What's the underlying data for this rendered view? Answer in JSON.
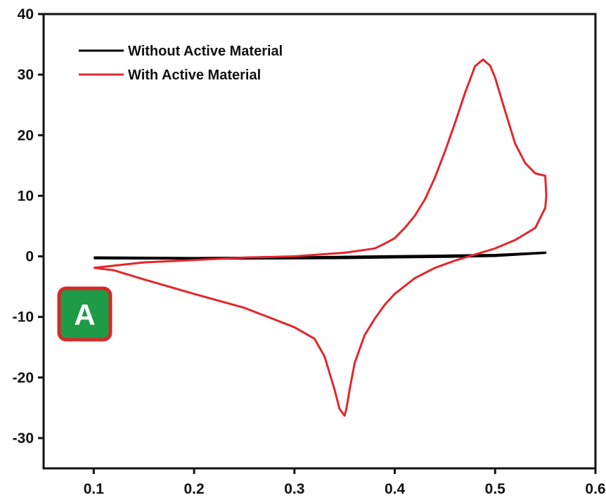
{
  "chart_data": {
    "type": "line",
    "xlim": [
      0.05,
      0.6
    ],
    "ylim": [
      -35,
      40
    ],
    "x_ticks": [
      0.1,
      0.2,
      0.3,
      0.4,
      0.5,
      0.6
    ],
    "x_tick_labels": [
      "0.1",
      "0.2",
      "0.3",
      "0.4",
      "0.5",
      "0.6"
    ],
    "y_ticks": [
      -30,
      -20,
      -10,
      0,
      10,
      20,
      30,
      40
    ],
    "y_tick_labels": [
      "-30",
      "-20",
      "-10",
      "0",
      "10",
      "20",
      "30",
      "40"
    ],
    "grid": false,
    "legend_position": "top-left",
    "series": [
      {
        "name": "Without Active Material",
        "color": "#000000",
        "points": [
          [
            0.1,
            -0.2
          ],
          [
            0.2,
            -0.3
          ],
          [
            0.3,
            -0.2
          ],
          [
            0.35,
            -0.1
          ],
          [
            0.4,
            0.0
          ],
          [
            0.45,
            0.1
          ],
          [
            0.5,
            0.2
          ],
          [
            0.55,
            0.6
          ],
          [
            0.5,
            0.1
          ],
          [
            0.45,
            -0.05
          ],
          [
            0.4,
            -0.15
          ],
          [
            0.35,
            -0.25
          ],
          [
            0.3,
            -0.3
          ],
          [
            0.2,
            -0.35
          ],
          [
            0.1,
            -0.3
          ]
        ]
      },
      {
        "name": "With Active Material",
        "color": "#e3262b",
        "points": [
          [
            0.1,
            -1.9
          ],
          [
            0.15,
            -1.0
          ],
          [
            0.2,
            -0.6
          ],
          [
            0.25,
            -0.2
          ],
          [
            0.3,
            0.0
          ],
          [
            0.35,
            0.6
          ],
          [
            0.38,
            1.3
          ],
          [
            0.39,
            2.1
          ],
          [
            0.4,
            3.0
          ],
          [
            0.41,
            4.7
          ],
          [
            0.42,
            6.7
          ],
          [
            0.43,
            9.4
          ],
          [
            0.44,
            13.0
          ],
          [
            0.45,
            17.3
          ],
          [
            0.46,
            22.0
          ],
          [
            0.47,
            27.0
          ],
          [
            0.48,
            31.4
          ],
          [
            0.488,
            32.5
          ],
          [
            0.495,
            31.5
          ],
          [
            0.5,
            29.5
          ],
          [
            0.51,
            24.0
          ],
          [
            0.52,
            18.6
          ],
          [
            0.53,
            15.4
          ],
          [
            0.54,
            13.7
          ],
          [
            0.55,
            13.3
          ],
          [
            0.551,
            10.0
          ],
          [
            0.55,
            8.0
          ],
          [
            0.54,
            4.7
          ],
          [
            0.52,
            2.7
          ],
          [
            0.5,
            1.3
          ],
          [
            0.48,
            0.3
          ],
          [
            0.46,
            -0.7
          ],
          [
            0.44,
            -1.9
          ],
          [
            0.42,
            -3.6
          ],
          [
            0.4,
            -6.2
          ],
          [
            0.39,
            -8.0
          ],
          [
            0.38,
            -10.3
          ],
          [
            0.37,
            -13.0
          ],
          [
            0.36,
            -17.6
          ],
          [
            0.355,
            -22.0
          ],
          [
            0.352,
            -25.0
          ],
          [
            0.35,
            -26.3
          ],
          [
            0.345,
            -25.2
          ],
          [
            0.34,
            -22.0
          ],
          [
            0.33,
            -16.5
          ],
          [
            0.32,
            -13.6
          ],
          [
            0.3,
            -11.7
          ],
          [
            0.25,
            -8.5
          ],
          [
            0.2,
            -6.2
          ],
          [
            0.15,
            -3.8
          ],
          [
            0.12,
            -2.3
          ],
          [
            0.1,
            -1.9
          ]
        ]
      }
    ]
  },
  "badge": {
    "label": "A",
    "fill": "#1e9b46",
    "border": "#d62828"
  }
}
